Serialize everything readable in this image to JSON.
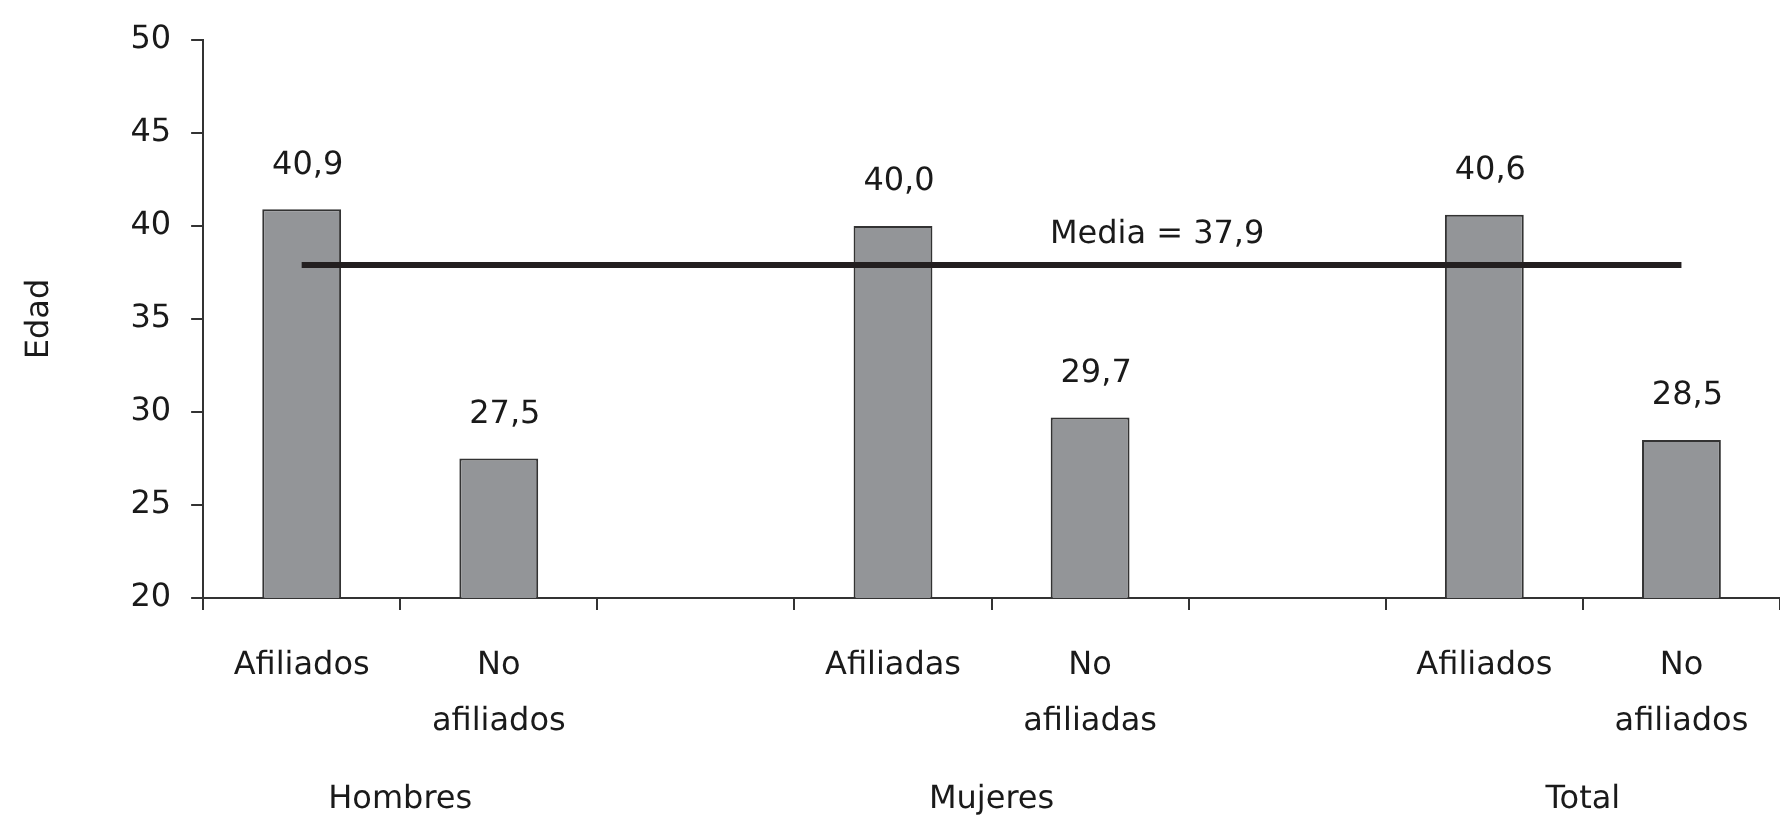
{
  "chart_data": {
    "type": "bar",
    "ylabel": "Edad",
    "categories": [
      "Afiliados",
      "No afiliados",
      null,
      "Afiliadas",
      "No afiliadas",
      null,
      "Afiliados",
      "No afiliados"
    ],
    "values": [
      40.9,
      27.5,
      null,
      40.0,
      29.7,
      null,
      40.6,
      28.5
    ],
    "value_labels": [
      "40,9",
      "27,5",
      null,
      "40,0",
      "29,7",
      null,
      "40,6",
      "28,5"
    ],
    "color": "#939598",
    "ylim": [
      20,
      50
    ],
    "yticks": [
      20,
      25,
      30,
      35,
      40,
      45,
      50
    ],
    "ref_lines": [
      {
        "axis": "y",
        "value": 37.9,
        "label": "Media = 37,9",
        "color": "#231f20"
      }
    ],
    "annotations": [
      "Hombres",
      "Mujeres",
      "Total"
    ]
  }
}
